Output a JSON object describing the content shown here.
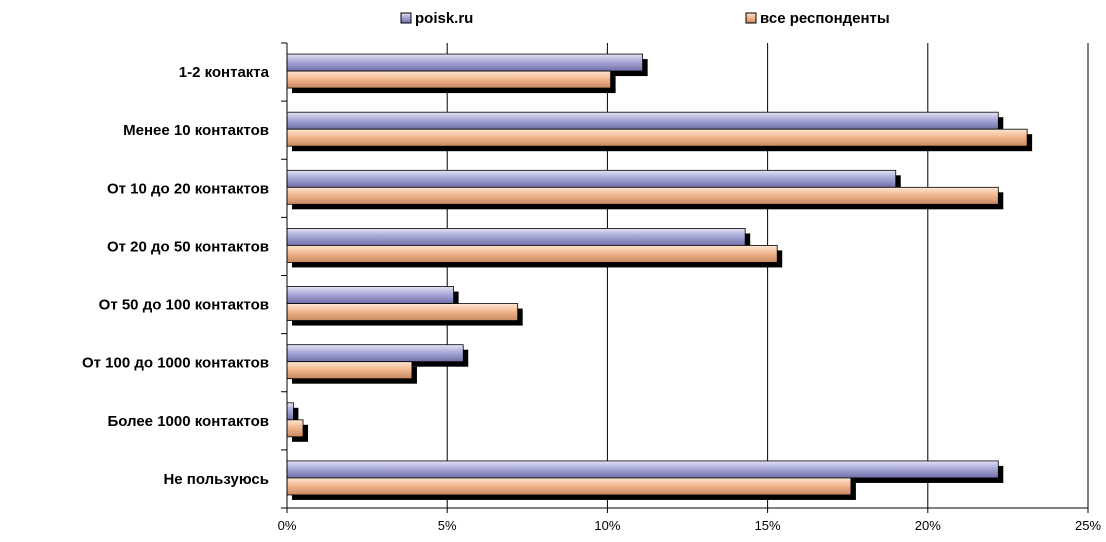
{
  "chart_data": {
    "type": "bar",
    "orientation": "horizontal",
    "title": "",
    "xlabel": "",
    "ylabel": "",
    "categories": [
      "1-2 контакта",
      "Менее 10 контактов",
      "От 10 до 20 контактов",
      "От 20 до 50 контактов",
      "От 50 до 100 контактов",
      "От 100 до 1000 контактов",
      "Более 1000 контактов",
      "Не пользуюсь"
    ],
    "series": [
      {
        "name": "poisk.ru",
        "color": "#9898c8",
        "values": [
          11.1,
          22.2,
          19.0,
          14.3,
          5.2,
          5.5,
          0.2,
          22.2
        ]
      },
      {
        "name": "все респонденты",
        "color": "#f0b490",
        "values": [
          10.1,
          23.1,
          22.2,
          15.3,
          7.2,
          3.9,
          0.5,
          17.6
        ]
      }
    ],
    "xlim": [
      0,
      25
    ],
    "xticks": [
      0,
      5,
      10,
      15,
      20,
      25
    ],
    "xtick_labels": [
      "0%",
      "5%",
      "10%",
      "15%",
      "20%",
      "25%"
    ],
    "grid": true,
    "legend_position": "top-center"
  }
}
